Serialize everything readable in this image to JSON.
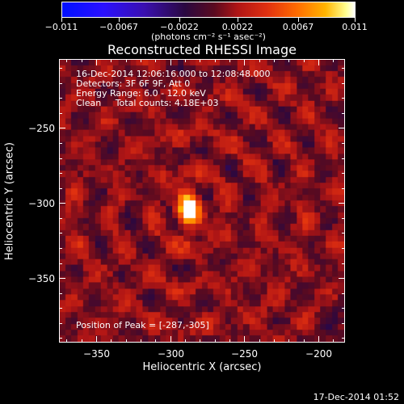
{
  "chart_data": {
    "type": "heatmap",
    "title": "Reconstructed RHESSI Image",
    "xlabel": "Heliocentric X (arcsec)",
    "ylabel": "Heliocentric Y (arcsec)",
    "xlim": [
      -375,
      -182
    ],
    "ylim": [
      -393,
      -204
    ],
    "x_ticks": [
      {
        "value": -350,
        "label": "−350"
      },
      {
        "value": -300,
        "label": "−300"
      },
      {
        "value": -250,
        "label": "−250"
      },
      {
        "value": -200,
        "label": "−200"
      }
    ],
    "y_ticks": [
      {
        "value": -250,
        "label": "−250"
      },
      {
        "value": -300,
        "label": "−300"
      },
      {
        "value": -350,
        "label": "−350"
      }
    ],
    "colorbar": {
      "min": -0.011,
      "max": 0.011,
      "units": "(photons cm⁻² s⁻¹ asec⁻²)",
      "ticks": [
        {
          "value": -0.011,
          "label": "−0.011"
        },
        {
          "value": -0.0067,
          "label": "−0.0067"
        },
        {
          "value": -0.0022,
          "label": "−0.0022"
        },
        {
          "value": 0.0022,
          "label": "0.0022"
        },
        {
          "value": 0.0067,
          "label": "0.0067"
        },
        {
          "value": 0.011,
          "label": "0.011"
        }
      ]
    },
    "peak": {
      "x": -287,
      "y": -305
    },
    "annotations": [
      "16-Dec-2014 12:06:16.000 to 12:08:48.000",
      "Detectors: 3F 6F 9F, Att 0",
      "Energy Range: 6.0 - 12.0 keV",
      "Clean     Total counts: 4.18E+03"
    ],
    "peak_label": "Position of Peak = [-287,-305]"
  },
  "footer": {
    "timestamp": "17-Dec-2014 01:52"
  }
}
